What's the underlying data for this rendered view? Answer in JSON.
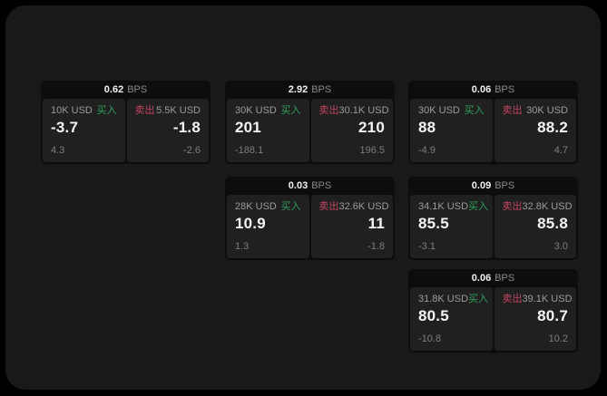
{
  "labels": {
    "buy": "买入",
    "sell": "卖出",
    "bps": "BPS"
  },
  "colors": {
    "page_bg": "#000000",
    "panel_bg": "#191919",
    "card_bg": "#0d0d0d",
    "pane_bg": "#202020",
    "buy_green": "#2f9e5a",
    "sell_red": "#c2455f",
    "value_white": "#f5f5f5",
    "label_gray": "#9b9b9b",
    "delta_gray": "#7d7d7d"
  },
  "cards": [
    {
      "bps": "0.62",
      "buy": {
        "size": "10K USD",
        "value": "-3.7",
        "delta": "4.3"
      },
      "sell": {
        "size": "5.5K USD",
        "value": "-1.8",
        "delta": "-2.6"
      }
    },
    {
      "bps": "2.92",
      "buy": {
        "size": "30K USD",
        "value": "201",
        "delta": "-188.1"
      },
      "sell": {
        "size": "30.1K USD",
        "value": "210",
        "delta": "196.5"
      }
    },
    {
      "bps": "0.06",
      "buy": {
        "size": "30K USD",
        "value": "88",
        "delta": "-4.9"
      },
      "sell": {
        "size": "30K USD",
        "value": "88.2",
        "delta": "4.7"
      }
    },
    {
      "bps": "0.03",
      "buy": {
        "size": "28K USD",
        "value": "10.9",
        "delta": "1.3"
      },
      "sell": {
        "size": "32.6K USD",
        "value": "11",
        "delta": "-1.8"
      }
    },
    {
      "bps": "0.09",
      "buy": {
        "size": "34.1K USD",
        "value": "85.5",
        "delta": "-3.1"
      },
      "sell": {
        "size": "32.8K USD",
        "value": "85.8",
        "delta": "3.0"
      }
    },
    {
      "bps": "0.06",
      "buy": {
        "size": "31.8K USD",
        "value": "80.5",
        "delta": "-10.8"
      },
      "sell": {
        "size": "39.1K USD",
        "value": "80.7",
        "delta": "10.2"
      }
    }
  ]
}
